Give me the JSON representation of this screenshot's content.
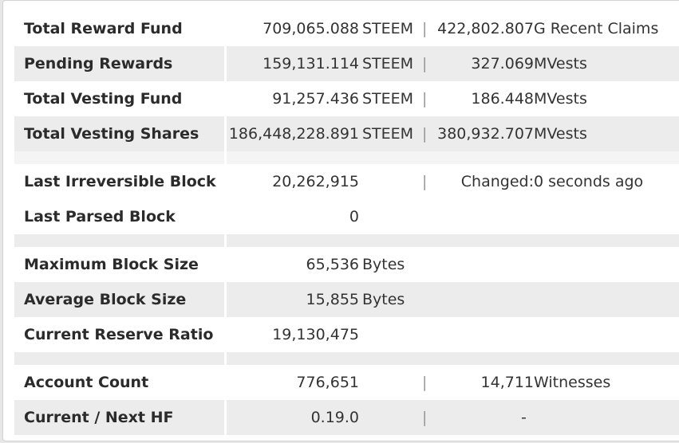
{
  "rows": [
    {
      "label": "Total Reward Fund",
      "v1": "709,065.088",
      "u1": "STEEM",
      "sep": "|",
      "v2": "422,802.807",
      "u2": "G  Recent Claims"
    },
    {
      "label": "Pending Rewards",
      "v1": "159,131.114",
      "u1": "STEEM",
      "sep": "|",
      "v2": "327.069",
      "u2": "MVests"
    },
    {
      "label": "Total Vesting Fund",
      "v1": "91,257.436",
      "u1": "STEEM",
      "sep": "|",
      "v2": "186.448",
      "u2": "MVests"
    },
    {
      "label": "Total Vesting Shares",
      "v1": "186,448,228.891",
      "u1": "STEEM",
      "sep": "|",
      "v2": "380,932.707",
      "u2": "MVests"
    },
    {
      "label": "Last Irreversible Block",
      "v1": "20,262,915",
      "sep": "|",
      "v2": "Changed:",
      "u2": "0 seconds ago"
    },
    {
      "label": "Last Parsed Block",
      "v1": "0"
    },
    {
      "label": "Maximum Block Size",
      "v1": "65,536",
      "u1": "Bytes"
    },
    {
      "label": "Average Block Size",
      "v1": "15,855",
      "u1": "Bytes"
    },
    {
      "label": "Current Reserve Ratio",
      "v1": "19,130,475"
    },
    {
      "label": "Account Count",
      "v1": "776,651",
      "sep": "|",
      "v2": "14,711",
      "u2": "Witnesses"
    },
    {
      "label": "Current / Next HF",
      "v1": "0.19.0",
      "sep": "|",
      "v2": "-"
    }
  ]
}
